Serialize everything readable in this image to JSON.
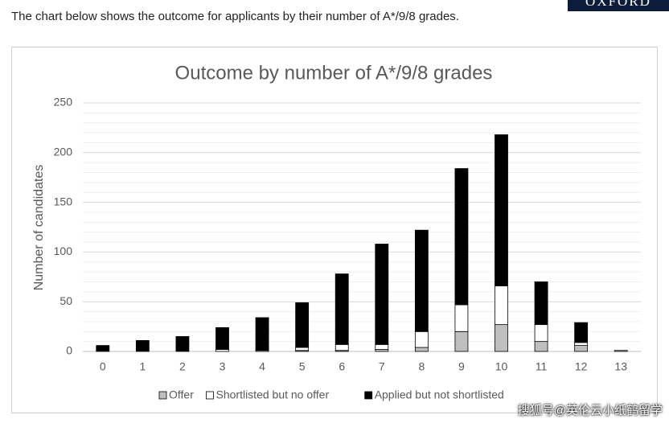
{
  "header": {
    "text": "The chart below shows the outcome for applicants by their number of A*/9/8 grades.",
    "logo": "OXFORD"
  },
  "watermark": "搜狐号@英伦云小纸鹤留学",
  "chart_data": {
    "type": "stacked_bar",
    "title": "Outcome by number of A*/9/8 grades",
    "y_label": "Number of candidates",
    "categories": [
      "0",
      "1",
      "2",
      "3",
      "4",
      "5",
      "6",
      "7",
      "8",
      "9",
      "10",
      "11",
      "12",
      "13"
    ],
    "series": [
      {
        "name": "Offer",
        "color": "#bfbfbf",
        "values": [
          0,
          0,
          0,
          0,
          0,
          1,
          1,
          2,
          4,
          20,
          27,
          10,
          6,
          1
        ]
      },
      {
        "name": "Shortlisted but no offer",
        "color": "#ffffff",
        "values": [
          0,
          0,
          0,
          2,
          1,
          3,
          6,
          5,
          16,
          27,
          39,
          17,
          3,
          0
        ]
      },
      {
        "name": "Applied but not shortlisted",
        "color": "#000000",
        "values": [
          6,
          11,
          15,
          22,
          33,
          45,
          71,
          101,
          102,
          137,
          152,
          43,
          20,
          0
        ]
      }
    ],
    "ylim": [
      0,
      250
    ],
    "yticks": [
      0,
      50,
      100,
      150,
      200,
      250
    ],
    "grid": true,
    "legend": "bottom"
  }
}
